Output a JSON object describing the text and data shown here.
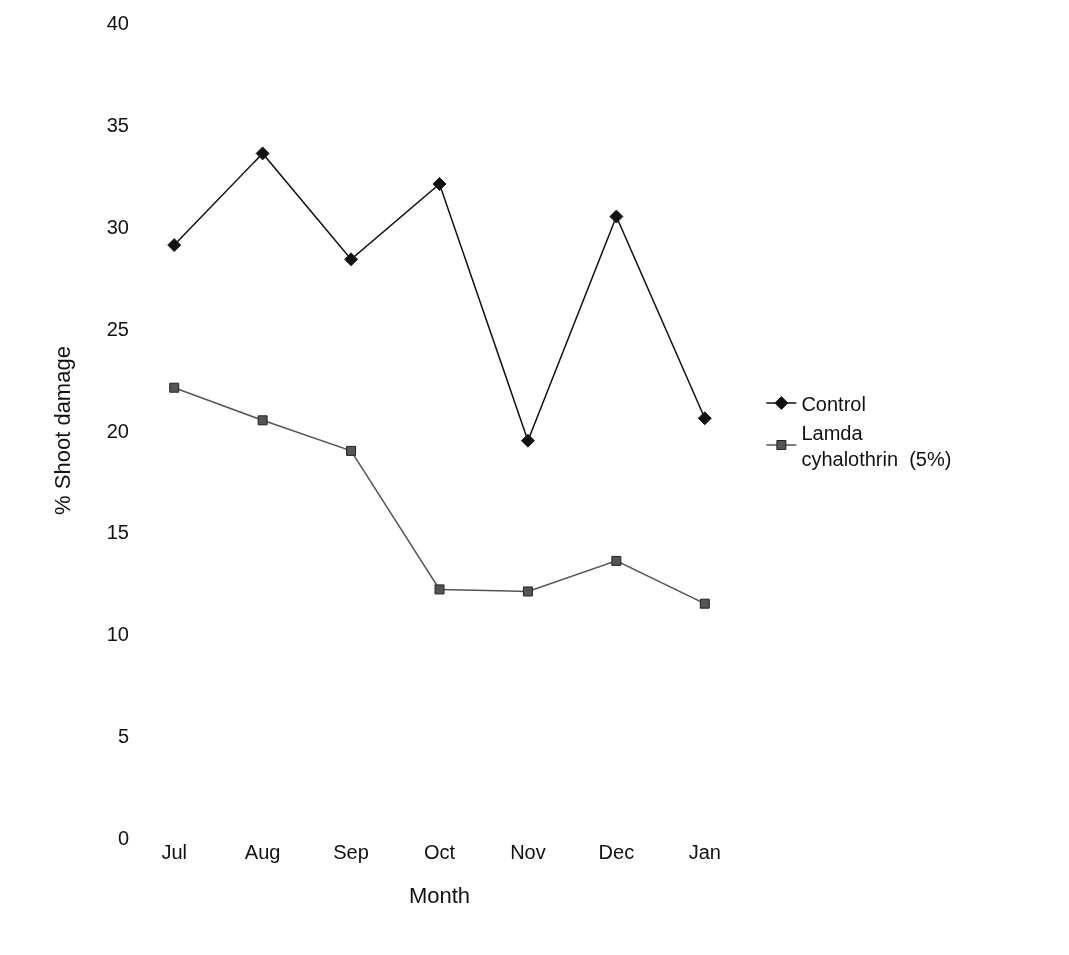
{
  "chart_data": {
    "type": "line",
    "xlabel": "Month",
    "ylabel": "% Shoot damage",
    "categories": [
      "Jul",
      "Aug",
      "Sep",
      "Oct",
      "Nov",
      "Dec",
      "Jan"
    ],
    "series": [
      {
        "name": "Control",
        "color": "#111111",
        "marker": "diamond",
        "values": [
          29.1,
          33.6,
          28.4,
          32.1,
          19.5,
          30.5,
          20.6
        ]
      },
      {
        "name": "Lamda cyhalothrin  (5%)",
        "color": "#555555",
        "marker": "square",
        "values": [
          22.1,
          20.5,
          19.0,
          12.2,
          12.1,
          13.6,
          11.5
        ]
      }
    ],
    "ylim": [
      0,
      40
    ],
    "yticks": [
      0,
      5,
      10,
      15,
      20,
      25,
      30,
      35,
      40
    ],
    "legend": "right",
    "line_style": "solid"
  }
}
